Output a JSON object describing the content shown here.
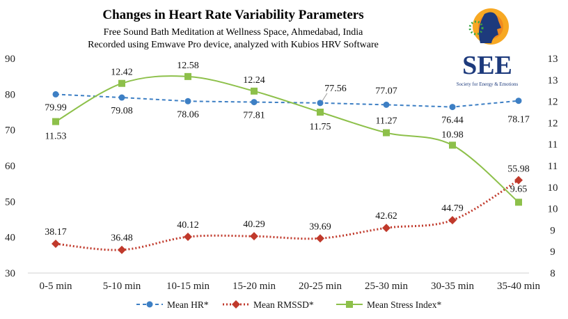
{
  "chart_data": {
    "type": "line",
    "title": "Changes in Heart Rate Variability Parameters",
    "subtitle": [
      "Free Sound Bath Meditation at Wellness Space, Ahmedabad, India",
      "Recorded using Emwave Pro device, analyzed with Kubios HRV Software"
    ],
    "categories": [
      "0-5 min",
      "5-10 min",
      "10-15 min",
      "15-20 min",
      "20-25 min",
      "25-30 min",
      "30-35 min",
      "35-40 min"
    ],
    "y_left": {
      "range": [
        30,
        90
      ],
      "ticks": [
        "30",
        "40",
        "50",
        "60",
        "70",
        "80",
        "90"
      ]
    },
    "y_right": {
      "range": [
        8,
        13
      ],
      "ticks": [
        "8",
        "9",
        "9",
        "10",
        "10",
        "11",
        "11",
        "12",
        "12",
        "13",
        "13"
      ]
    },
    "grid": false,
    "legend": "bottom",
    "series": [
      {
        "name": "Mean HR*",
        "axis": "left",
        "color": "#3d7fc4",
        "style": "dashed",
        "marker": "circle",
        "smooth": false,
        "values": [
          79.99,
          79.08,
          78.06,
          77.81,
          77.56,
          77.07,
          76.44,
          78.17
        ]
      },
      {
        "name": "Mean RMSSD*",
        "axis": "left",
        "color": "#c0392b",
        "style": "dotted",
        "marker": "diamond",
        "smooth": true,
        "values": [
          38.17,
          36.48,
          40.12,
          40.29,
          39.69,
          42.62,
          44.79,
          55.98
        ]
      },
      {
        "name": "Mean Stress Index*",
        "axis": "right",
        "color": "#8dc04a",
        "style": "solid",
        "marker": "square",
        "smooth": true,
        "values": [
          11.53,
          12.42,
          12.58,
          12.24,
          11.75,
          11.27,
          10.98,
          9.65
        ]
      }
    ]
  },
  "logo": {
    "text": "SEE",
    "tagline": "Society for Energy & Emotions"
  }
}
